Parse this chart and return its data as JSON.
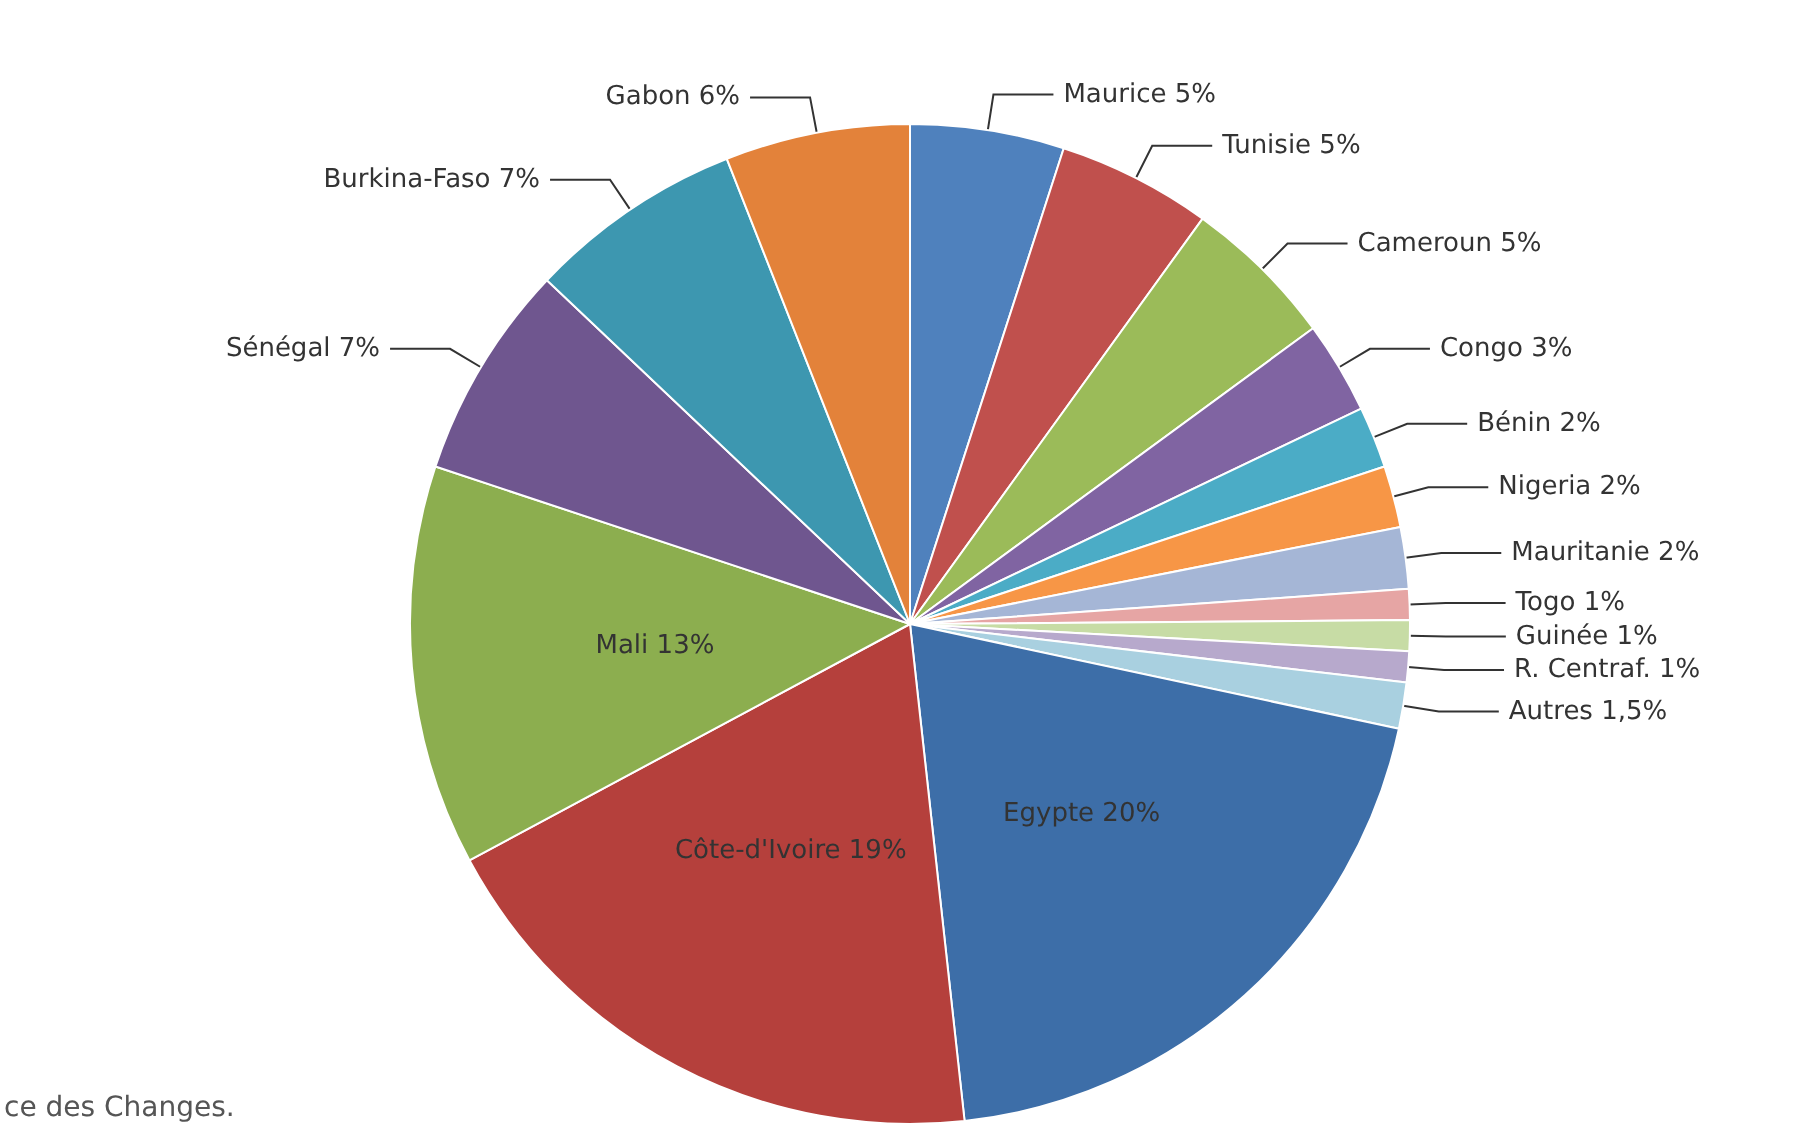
{
  "chart_data": {
    "type": "pie",
    "categories": [
      "Maurice",
      "Tunisie",
      "Cameroun",
      "Congo",
      "Bénin",
      "Nigeria",
      "Mauritanie",
      "Togo",
      "Guinée",
      "R. Centraf.",
      "Autres",
      "Egypte",
      "Côte-d'Ivoire",
      "Mali",
      "Sénégal",
      "Burkina-Faso",
      "Gabon"
    ],
    "values": [
      5,
      5,
      5,
      3,
      2,
      2,
      2,
      1,
      1,
      1,
      1.5,
      20,
      19,
      13,
      7,
      7,
      6
    ],
    "value_labels": [
      "5%",
      "5%",
      "5%",
      "3%",
      "2%",
      "2%",
      "2%",
      "1%",
      "1%",
      "1%",
      "1,5%",
      "20%",
      "19%",
      "13%",
      "7%",
      "7%",
      "6%"
    ],
    "colors": [
      "#4f81bd",
      "#c0504d",
      "#9bbb59",
      "#8064a2",
      "#4bacc6",
      "#f79646",
      "#a5b6d6",
      "#e6a5a4",
      "#c7dca5",
      "#b7a9cc",
      "#a9d0e0",
      "#3d6ea8",
      "#b5403c",
      "#8cae4f",
      "#6f568f",
      "#3d97b0",
      "#e3823a"
    ],
    "annotations": [
      "ce des Changes."
    ],
    "legend": false
  }
}
